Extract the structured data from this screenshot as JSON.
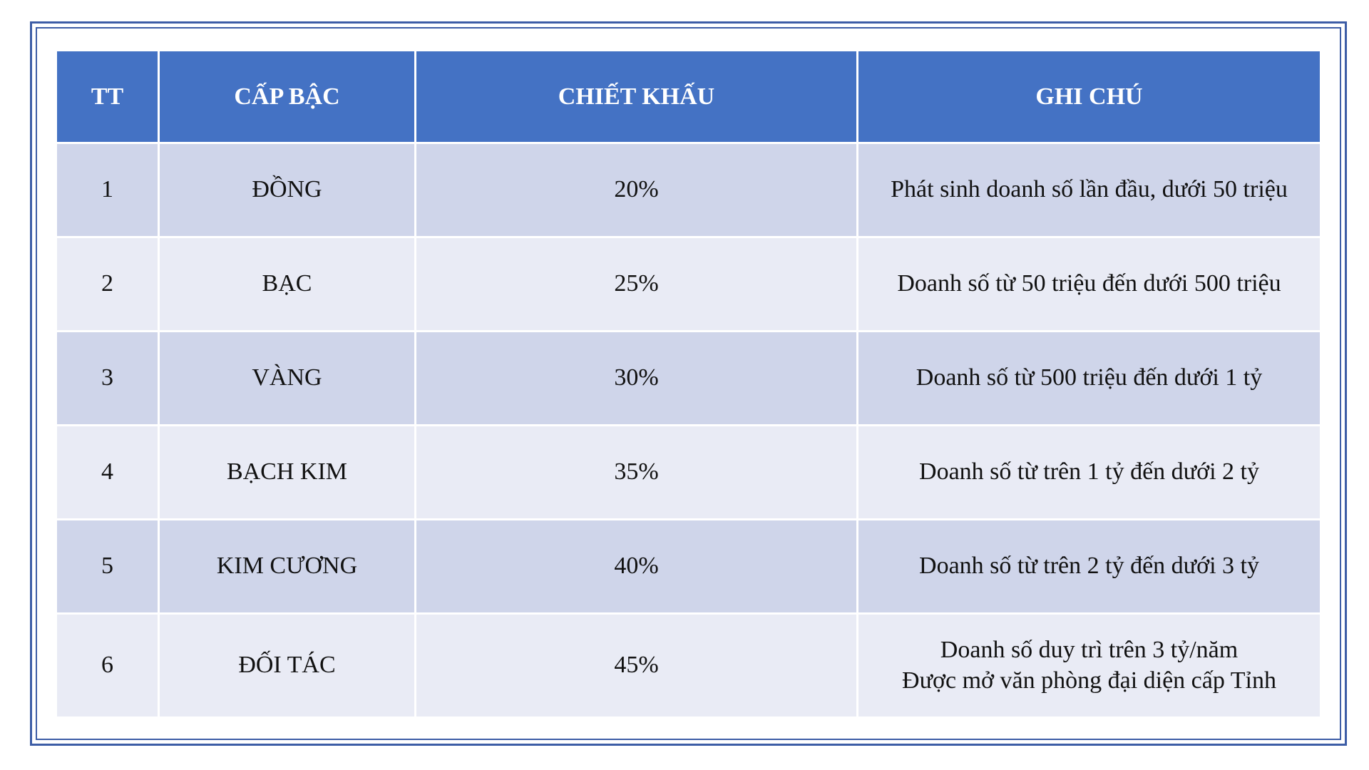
{
  "table": {
    "headers": {
      "tt": "TT",
      "level": "CẤP BẬC",
      "discount": "CHIẾT KHẤU",
      "note": "GHI CHÚ"
    },
    "rows": [
      {
        "tt": "1",
        "level": "ĐỒNG",
        "discount": "20%",
        "note_line1": "Phát sinh doanh số lần đầu, dưới 50 triệu",
        "note_line2": ""
      },
      {
        "tt": "2",
        "level": "BẠC",
        "discount": "25%",
        "note_line1": "Doanh số từ 50 triệu đến dưới 500 triệu",
        "note_line2": ""
      },
      {
        "tt": "3",
        "level": "VÀNG",
        "discount": "30%",
        "note_line1": "Doanh số từ 500 triệu đến dưới 1 tỷ",
        "note_line2": ""
      },
      {
        "tt": "4",
        "level": "BẠCH KIM",
        "discount": "35%",
        "note_line1": "Doanh số từ trên 1 tỷ đến dưới 2 tỷ",
        "note_line2": ""
      },
      {
        "tt": "5",
        "level": "KIM CƯƠNG",
        "discount": "40%",
        "note_line1": "Doanh số từ trên 2 tỷ đến dưới 3 tỷ",
        "note_line2": ""
      },
      {
        "tt": "6",
        "level": "ĐỐI TÁC",
        "discount": "45%",
        "note_line1": "Doanh số duy trì trên 3 tỷ/năm",
        "note_line2": "Được mở văn phòng đại diện cấp Tỉnh"
      }
    ]
  },
  "colors": {
    "header_bg": "#4472c4",
    "row_odd_bg": "#cfd5ea",
    "row_even_bg": "#e9ebf5",
    "frame_border": "#3d5da6"
  }
}
